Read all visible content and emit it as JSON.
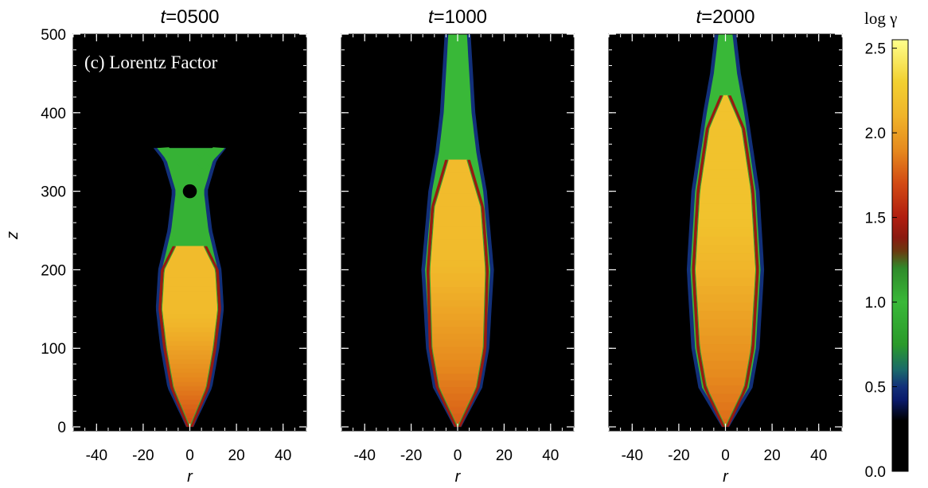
{
  "panel_label": "(c) Lorentz Factor",
  "colorbar": {
    "title": "log γ",
    "range": [
      0.0,
      2.55
    ],
    "ticks": [
      0.0,
      0.5,
      1.0,
      1.5,
      2.0,
      2.5
    ],
    "tick_labels": [
      "0.0",
      "0.5",
      "1.0",
      "1.5",
      "2.0",
      "2.5"
    ],
    "colormap": [
      [
        0.0,
        "#000000"
      ],
      [
        0.3,
        "#000000"
      ],
      [
        0.42,
        "#0a1a6a"
      ],
      [
        0.5,
        "#12307a"
      ],
      [
        0.6,
        "#1a6a6a"
      ],
      [
        0.75,
        "#2a9a2a"
      ],
      [
        1.0,
        "#39b838"
      ],
      [
        1.2,
        "#2f8a2a"
      ],
      [
        1.3,
        "#6a3a10"
      ],
      [
        1.38,
        "#8a1a10"
      ],
      [
        1.5,
        "#b01e10"
      ],
      [
        1.7,
        "#d24a14"
      ],
      [
        1.9,
        "#e68a1e"
      ],
      [
        2.1,
        "#f0b42a"
      ],
      [
        2.3,
        "#f2d030"
      ],
      [
        2.55,
        "#ffff8c"
      ]
    ]
  },
  "chart_data": [
    {
      "type": "heatmap",
      "title": "t=0500",
      "title_prefix": "t",
      "title_value": "=0500",
      "xlabel": "r",
      "ylabel": "z",
      "xlim": [
        -50,
        50
      ],
      "ylim": [
        -5,
        500
      ],
      "xticks": [
        -40,
        -20,
        0,
        20,
        40
      ],
      "yticks": [
        0,
        100,
        200,
        300,
        400,
        500
      ],
      "colorbar_quantity": "log γ",
      "jet_core": {
        "height": 230,
        "radius_profile": [
          [
            0,
            0
          ],
          [
            50,
            7
          ],
          [
            100,
            10
          ],
          [
            150,
            12
          ],
          [
            200,
            11
          ],
          [
            230,
            6
          ]
        ],
        "log_gamma_base": 1.7,
        "log_gamma_max": 2.15
      },
      "cocoon": {
        "head_height": 355,
        "radius_profile": [
          [
            0,
            0
          ],
          [
            50,
            8
          ],
          [
            100,
            11
          ],
          [
            150,
            13
          ],
          [
            200,
            12
          ],
          [
            250,
            8
          ],
          [
            300,
            6
          ],
          [
            340,
            10
          ],
          [
            355,
            14
          ]
        ],
        "log_gamma": 0.95
      },
      "head_wings": {
        "height": 352,
        "span": [
          -14,
          15
        ]
      }
    },
    {
      "type": "heatmap",
      "title": "t=1000",
      "title_prefix": "t",
      "title_value": "=1000",
      "xlabel": "r",
      "ylabel": "",
      "xlim": [
        -50,
        50
      ],
      "ylim": [
        -5,
        500
      ],
      "xticks": [
        -40,
        -20,
        0,
        20,
        40
      ],
      "yticks": [
        0,
        100,
        200,
        300,
        400,
        500
      ],
      "colorbar_quantity": "log γ",
      "jet_core": {
        "height": 340,
        "radius_profile": [
          [
            0,
            0
          ],
          [
            50,
            8
          ],
          [
            100,
            11
          ],
          [
            200,
            12
          ],
          [
            280,
            10
          ],
          [
            340,
            4
          ]
        ],
        "log_gamma_base": 1.75,
        "log_gamma_max": 2.15
      },
      "cocoon": {
        "head_height": 500,
        "radius_profile": [
          [
            0,
            0
          ],
          [
            50,
            9
          ],
          [
            100,
            12
          ],
          [
            200,
            14
          ],
          [
            300,
            11
          ],
          [
            350,
            8
          ],
          [
            400,
            6
          ],
          [
            450,
            5
          ],
          [
            500,
            4
          ]
        ],
        "log_gamma": 1.0
      }
    },
    {
      "type": "heatmap",
      "title": "t=2000",
      "title_prefix": "t",
      "title_value": "=2000",
      "xlabel": "r",
      "ylabel": "",
      "xlim": [
        -50,
        50
      ],
      "ylim": [
        -5,
        500
      ],
      "xticks": [
        -40,
        -20,
        0,
        20,
        40
      ],
      "yticks": [
        0,
        100,
        200,
        300,
        400,
        500
      ],
      "colorbar_quantity": "log γ",
      "jet_core": {
        "height": 422,
        "radius_profile": [
          [
            0,
            0
          ],
          [
            50,
            8
          ],
          [
            100,
            11
          ],
          [
            200,
            13
          ],
          [
            300,
            11
          ],
          [
            380,
            7
          ],
          [
            422,
            1
          ]
        ],
        "log_gamma_base": 1.8,
        "log_gamma_max": 2.2
      },
      "cocoon": {
        "head_height": 500,
        "radius_profile": [
          [
            0,
            0
          ],
          [
            50,
            10
          ],
          [
            100,
            13
          ],
          [
            200,
            15
          ],
          [
            300,
            13
          ],
          [
            400,
            8
          ],
          [
            450,
            5
          ],
          [
            500,
            3
          ]
        ],
        "log_gamma": 1.0
      }
    }
  ]
}
